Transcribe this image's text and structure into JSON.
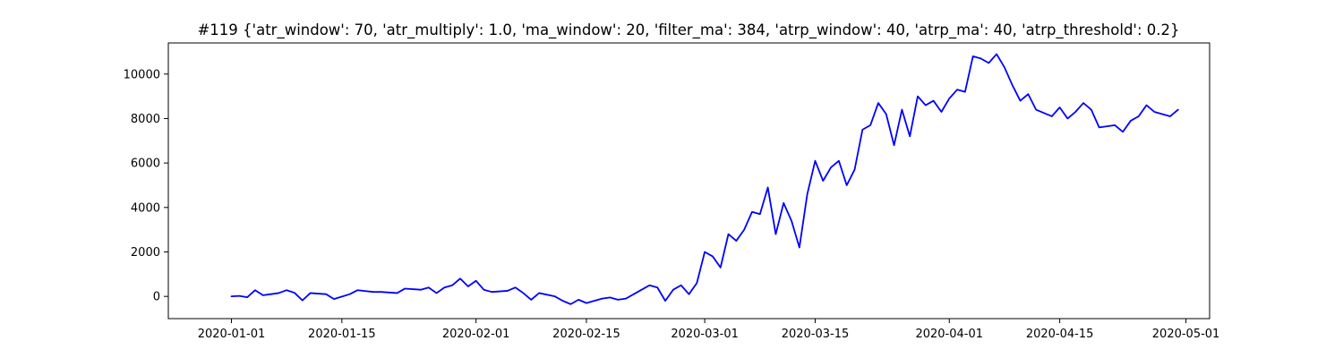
{
  "chart_data": {
    "type": "line",
    "title": "#119 {'atr_window': 70, 'atr_multiply': 1.0, 'ma_window': 20, 'filter_ma': 384, 'atrp_window': 40, 'atrp_ma': 40, 'atrp_threshold': 0.2}",
    "xlabel": "",
    "ylabel": "",
    "xlim": [
      "2019-12-24",
      "2020-05-04"
    ],
    "ylim": [
      -1000,
      11400
    ],
    "grid": false,
    "x_ticks": [
      "2020-01-01",
      "2020-01-15",
      "2020-02-01",
      "2020-02-15",
      "2020-03-01",
      "2020-03-15",
      "2020-04-01",
      "2020-04-15",
      "2020-05-01"
    ],
    "y_ticks": [
      0,
      2000,
      4000,
      6000,
      8000,
      10000
    ],
    "series": [
      {
        "color": "#0000ff",
        "points": [
          [
            "2020-01-01",
            0
          ],
          [
            "2020-01-02",
            20
          ],
          [
            "2020-01-03",
            -40
          ],
          [
            "2020-01-04",
            280
          ],
          [
            "2020-01-05",
            50
          ],
          [
            "2020-01-06",
            100
          ],
          [
            "2020-01-07",
            150
          ],
          [
            "2020-01-08",
            280
          ],
          [
            "2020-01-09",
            160
          ],
          [
            "2020-01-10",
            -180
          ],
          [
            "2020-01-11",
            150
          ],
          [
            "2020-01-13",
            100
          ],
          [
            "2020-01-14",
            -120
          ],
          [
            "2020-01-16",
            100
          ],
          [
            "2020-01-17",
            280
          ],
          [
            "2020-01-19",
            200
          ],
          [
            "2020-01-20",
            200
          ],
          [
            "2020-01-22",
            150
          ],
          [
            "2020-01-23",
            350
          ],
          [
            "2020-01-25",
            300
          ],
          [
            "2020-01-26",
            400
          ],
          [
            "2020-01-27",
            150
          ],
          [
            "2020-01-28",
            400
          ],
          [
            "2020-01-29",
            500
          ],
          [
            "2020-01-30",
            800
          ],
          [
            "2020-01-31",
            450
          ],
          [
            "2020-02-01",
            700
          ],
          [
            "2020-02-02",
            300
          ],
          [
            "2020-02-03",
            200
          ],
          [
            "2020-02-05",
            250
          ],
          [
            "2020-02-06",
            400
          ],
          [
            "2020-02-07",
            150
          ],
          [
            "2020-02-08",
            -150
          ],
          [
            "2020-02-09",
            150
          ],
          [
            "2020-02-11",
            0
          ],
          [
            "2020-02-12",
            -200
          ],
          [
            "2020-02-13",
            -350
          ],
          [
            "2020-02-14",
            -150
          ],
          [
            "2020-02-15",
            -300
          ],
          [
            "2020-02-16",
            -200
          ],
          [
            "2020-02-17",
            -100
          ],
          [
            "2020-02-18",
            -50
          ],
          [
            "2020-02-19",
            -150
          ],
          [
            "2020-02-20",
            -100
          ],
          [
            "2020-02-21",
            100
          ],
          [
            "2020-02-22",
            300
          ],
          [
            "2020-02-23",
            500
          ],
          [
            "2020-02-24",
            400
          ],
          [
            "2020-02-25",
            -200
          ],
          [
            "2020-02-26",
            300
          ],
          [
            "2020-02-27",
            500
          ],
          [
            "2020-02-28",
            100
          ],
          [
            "2020-02-29",
            600
          ],
          [
            "2020-03-01",
            2000
          ],
          [
            "2020-03-02",
            1800
          ],
          [
            "2020-03-03",
            1300
          ],
          [
            "2020-03-04",
            2800
          ],
          [
            "2020-03-05",
            2500
          ],
          [
            "2020-03-06",
            3000
          ],
          [
            "2020-03-07",
            3800
          ],
          [
            "2020-03-08",
            3700
          ],
          [
            "2020-03-09",
            4900
          ],
          [
            "2020-03-10",
            2800
          ],
          [
            "2020-03-11",
            4200
          ],
          [
            "2020-03-12",
            3400
          ],
          [
            "2020-03-13",
            2200
          ],
          [
            "2020-03-14",
            4600
          ],
          [
            "2020-03-15",
            6100
          ],
          [
            "2020-03-16",
            5200
          ],
          [
            "2020-03-17",
            5800
          ],
          [
            "2020-03-18",
            6100
          ],
          [
            "2020-03-19",
            5000
          ],
          [
            "2020-03-20",
            5700
          ],
          [
            "2020-03-21",
            7500
          ],
          [
            "2020-03-22",
            7700
          ],
          [
            "2020-03-23",
            8700
          ],
          [
            "2020-03-24",
            8200
          ],
          [
            "2020-03-25",
            6800
          ],
          [
            "2020-03-26",
            8400
          ],
          [
            "2020-03-27",
            7200
          ],
          [
            "2020-03-28",
            9000
          ],
          [
            "2020-03-29",
            8600
          ],
          [
            "2020-03-30",
            8800
          ],
          [
            "2020-03-31",
            8300
          ],
          [
            "2020-04-01",
            8900
          ],
          [
            "2020-04-02",
            9300
          ],
          [
            "2020-04-03",
            9200
          ],
          [
            "2020-04-04",
            10800
          ],
          [
            "2020-04-05",
            10700
          ],
          [
            "2020-04-06",
            10500
          ],
          [
            "2020-04-07",
            10900
          ],
          [
            "2020-04-08",
            10300
          ],
          [
            "2020-04-09",
            9500
          ],
          [
            "2020-04-10",
            8800
          ],
          [
            "2020-04-11",
            9100
          ],
          [
            "2020-04-12",
            8400
          ],
          [
            "2020-04-14",
            8100
          ],
          [
            "2020-04-15",
            8500
          ],
          [
            "2020-04-16",
            8000
          ],
          [
            "2020-04-17",
            8300
          ],
          [
            "2020-04-18",
            8700
          ],
          [
            "2020-04-19",
            8400
          ],
          [
            "2020-04-20",
            7600
          ],
          [
            "2020-04-22",
            7700
          ],
          [
            "2020-04-23",
            7400
          ],
          [
            "2020-04-24",
            7900
          ],
          [
            "2020-04-25",
            8100
          ],
          [
            "2020-04-26",
            8600
          ],
          [
            "2020-04-27",
            8300
          ],
          [
            "2020-04-28",
            8200
          ],
          [
            "2020-04-29",
            8100
          ],
          [
            "2020-04-30",
            8400
          ]
        ]
      }
    ]
  }
}
